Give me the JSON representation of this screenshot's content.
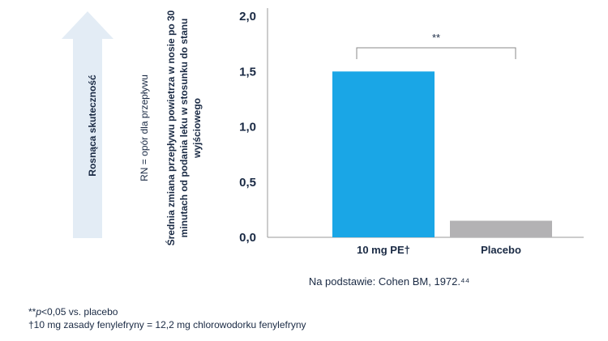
{
  "arrow_label": "Rosnąca skuteczność",
  "rn_label": "RN = opór dla przepływu",
  "chart_data": {
    "type": "bar",
    "categories": [
      "10 mg PE†",
      "Placebo"
    ],
    "values": [
      1.5,
      0.15
    ],
    "colors": [
      "#1aa6e6",
      "#b3b2b4"
    ],
    "ylabel": "Średnia zmiana przepływu powietrza w nosie po 30 minutach od podania leku w stosunku do stanu wyjściowego",
    "ylim": [
      0,
      2.0
    ],
    "yticks": [
      "2,0",
      "1,5",
      "1,0",
      "0,5",
      "0,0"
    ],
    "ytick_values": [
      2.0,
      1.5,
      1.0,
      0.5,
      0.0
    ],
    "significance": "**",
    "grid": false
  },
  "source": "Na podstawie: Cohen BM, 1972.⁴⁴",
  "footnote1_prefix": "**",
  "footnote1_p": "p",
  "footnote1_rest": "<0,05 vs. placebo",
  "footnote2": "†10 mg zasady fenylefryny = 12,2 mg chlorowodorku fenylefryny",
  "colors": {
    "arrow": "#e3ecf5",
    "text": "#1a2a44",
    "axis": "#888888"
  }
}
